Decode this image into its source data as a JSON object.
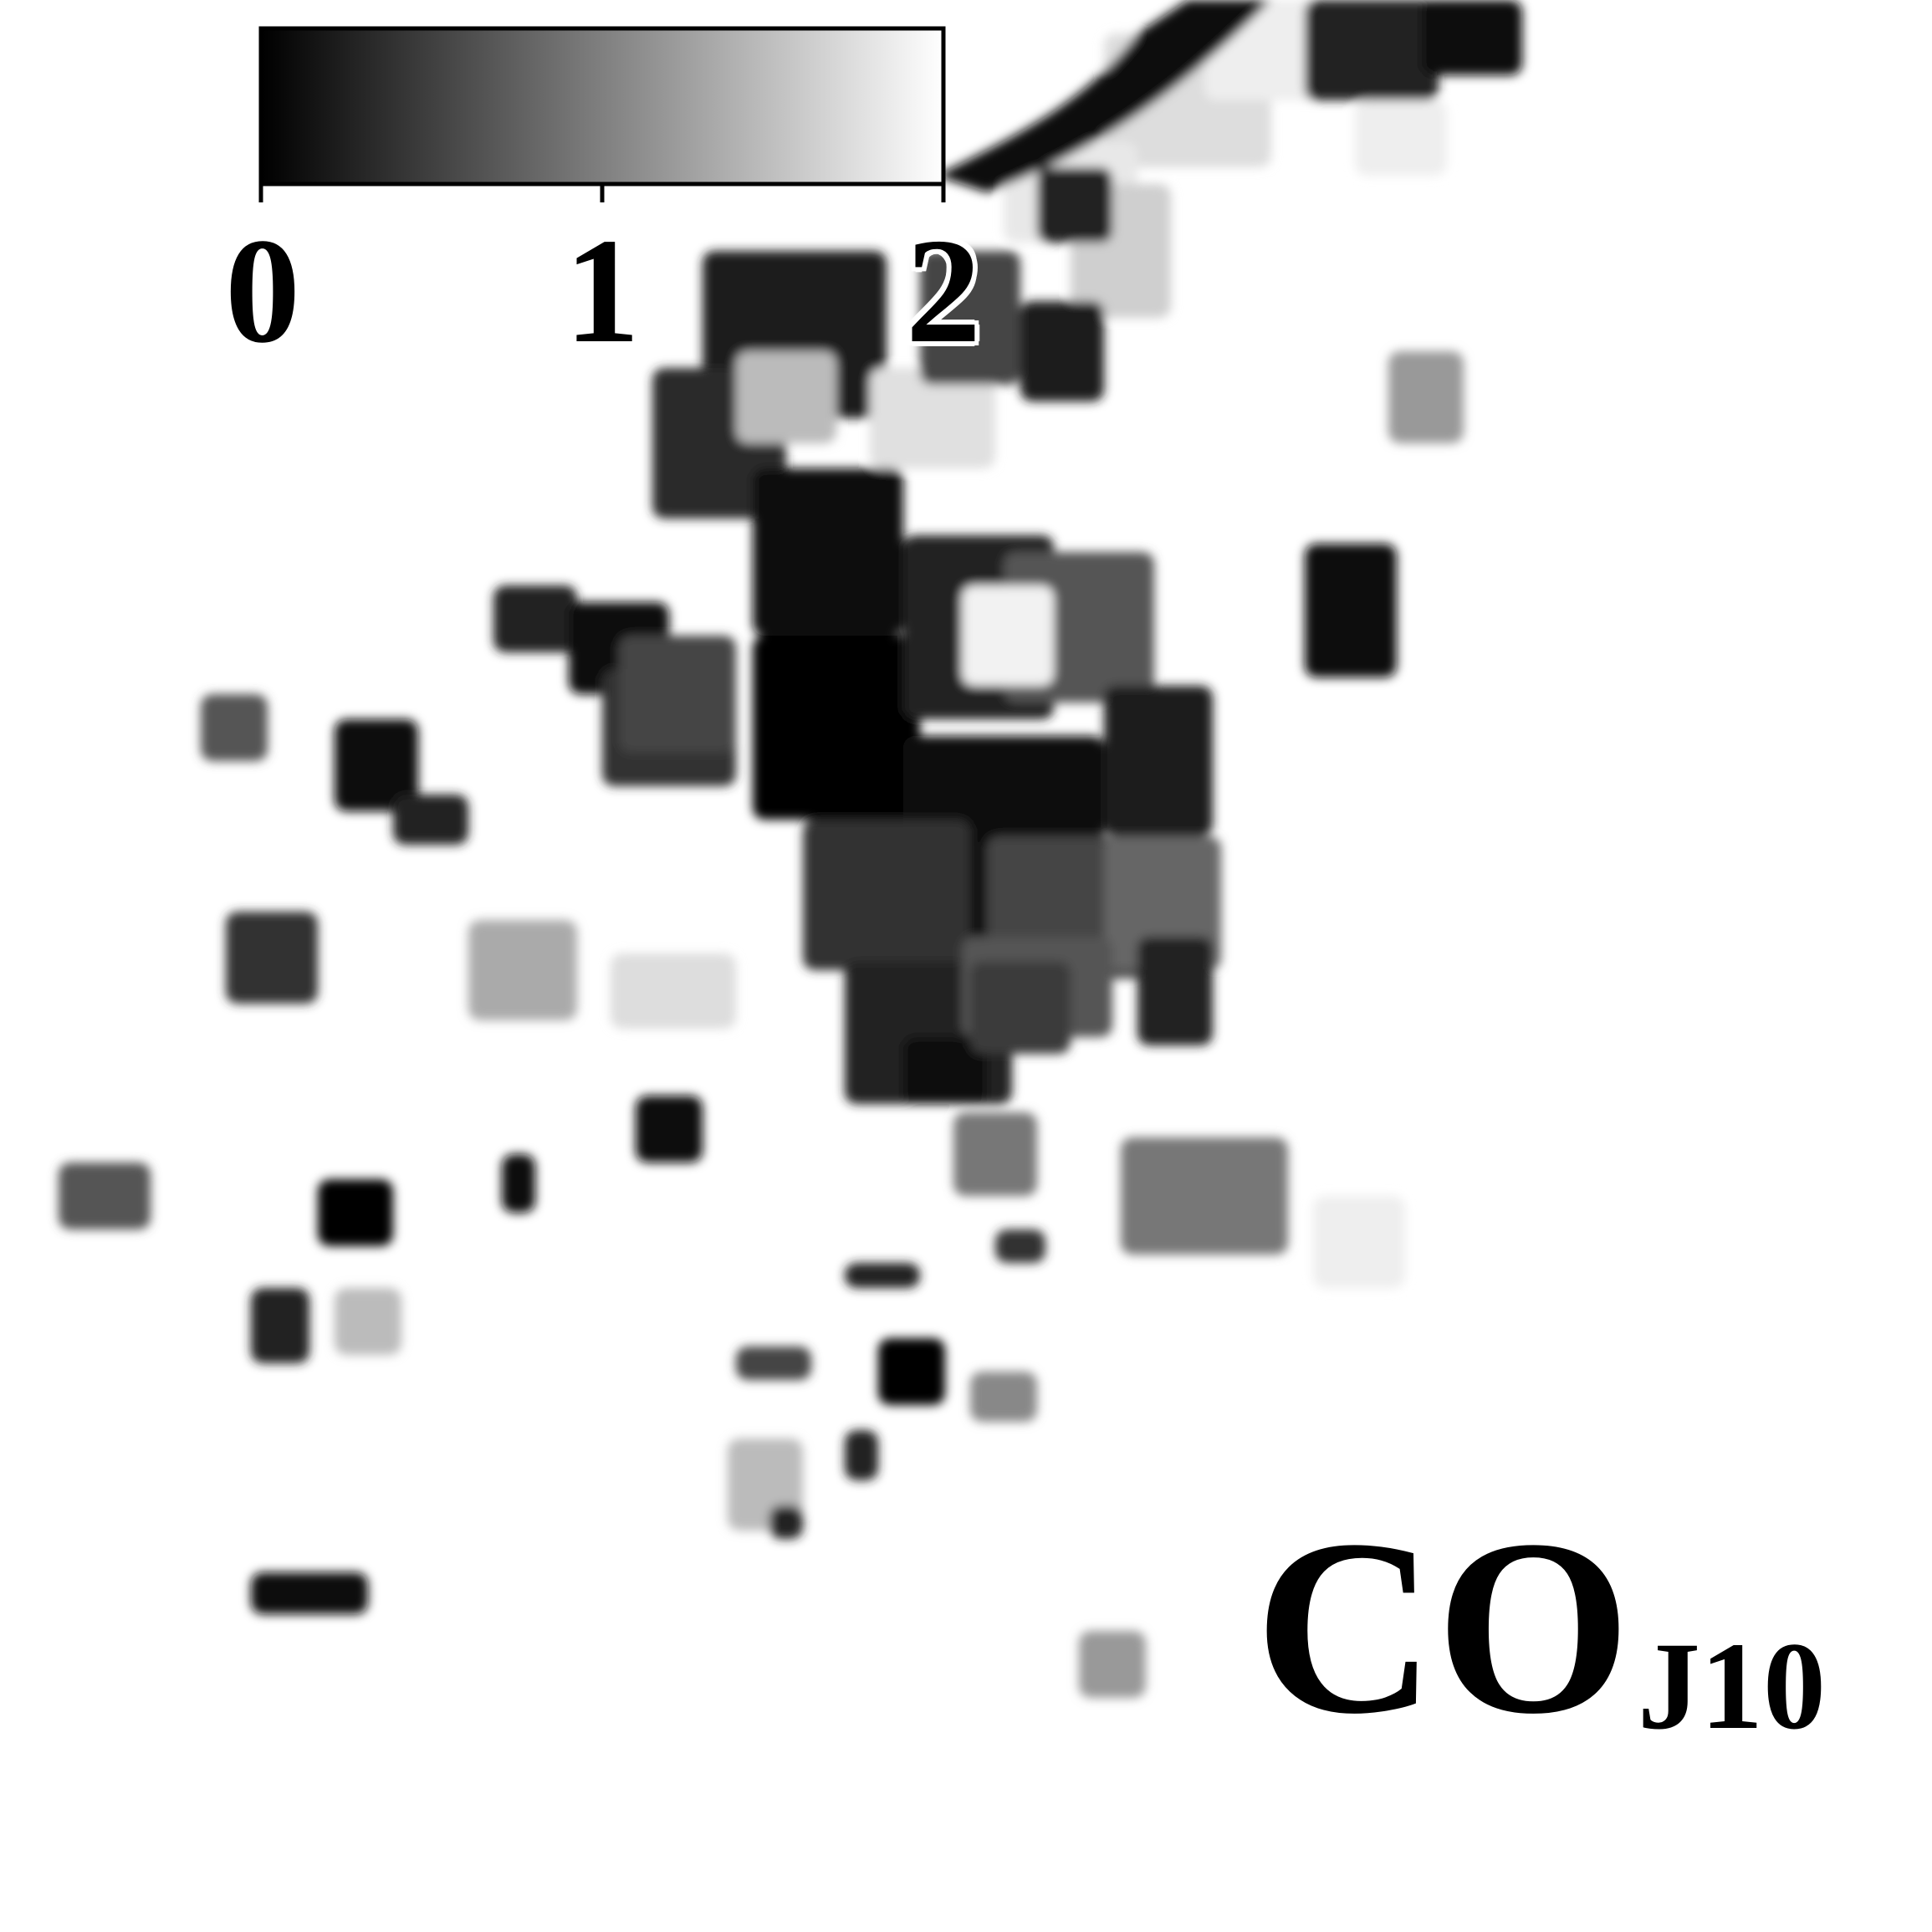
{
  "chart_data": {
    "type": "heatmap",
    "title_main": "CO",
    "title_sub": "J10",
    "colorbar": {
      "min": 0,
      "max": 2,
      "ticks": [
        "0",
        "1",
        "2"
      ],
      "colors": [
        "#000000",
        "#ffffff"
      ]
    }
  }
}
